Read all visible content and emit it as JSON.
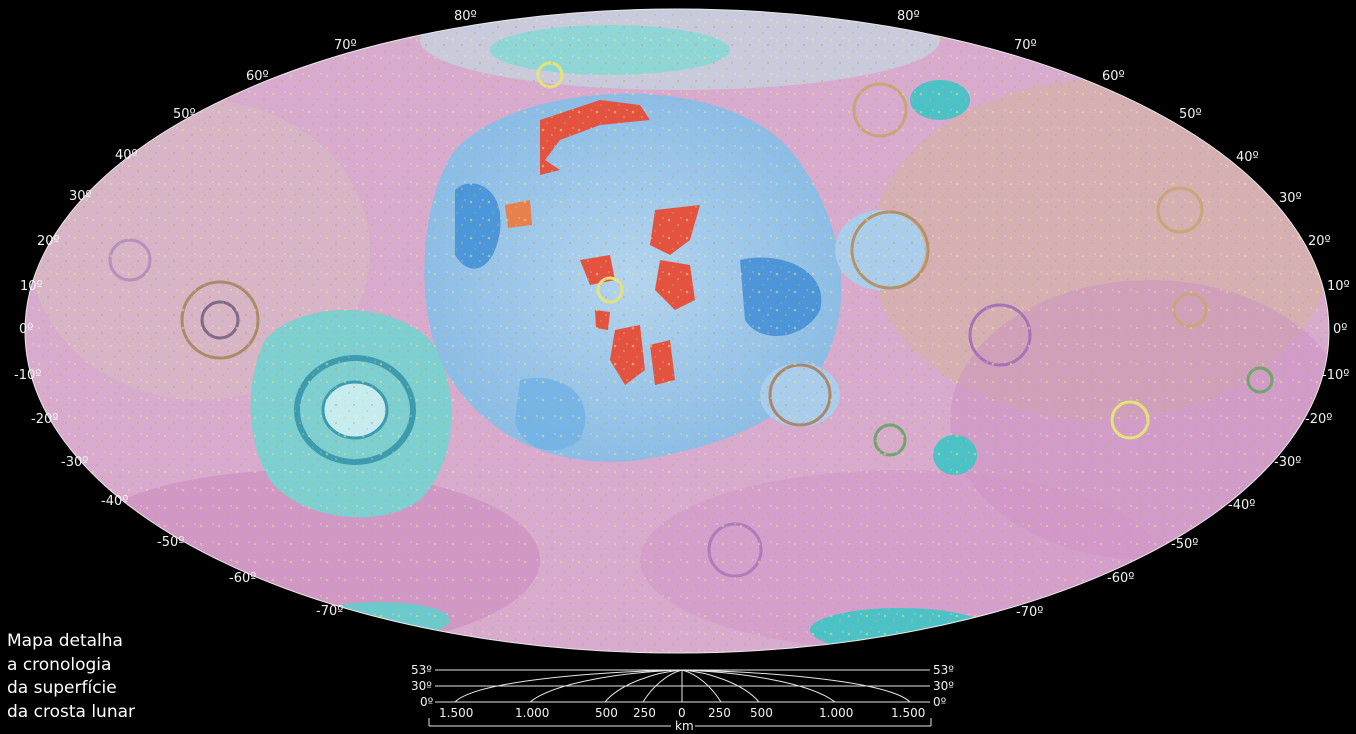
{
  "map": {
    "projection": "Mollweide",
    "colors": {
      "background": "#000000",
      "highlands_pink": "#d9a6cf",
      "highlands_magenta": "#c77fb8",
      "mare_light_blue": "#a9cdea",
      "mare_blue": "#5aa7e0",
      "basin_cyan": "#7dcfd0",
      "young_red": "#e4533f",
      "crater_tan": "#c9a57a",
      "crater_yellow": "#e6e27a",
      "crater_green": "#8fc46a"
    },
    "parallel_labels_left": [
      "80º",
      "70º",
      "60º",
      "50º",
      "40º",
      "30º",
      "20º",
      "10º",
      "0º",
      "-10º",
      "-20º",
      "-30º",
      "-40º",
      "-50º",
      "-60º",
      "-70º"
    ],
    "parallel_labels_right": [
      "80º",
      "70º",
      "60º",
      "50º",
      "40º",
      "30º",
      "20º",
      "10º",
      "0º",
      "-10º",
      "-20º",
      "-30º",
      "-40º",
      "-50º",
      "-60º",
      "-70º"
    ]
  },
  "caption": {
    "lines": [
      "Mapa detalha",
      "a cronologia",
      "da superfície",
      "da crosta lunar"
    ]
  },
  "scale_bar": {
    "lat_lines": [
      "53º",
      "30º",
      "0º"
    ],
    "distances": [
      "1.500",
      "1.000",
      "500",
      "250",
      "0",
      "250",
      "500",
      "1.000",
      "1.500"
    ],
    "unit": "km"
  }
}
